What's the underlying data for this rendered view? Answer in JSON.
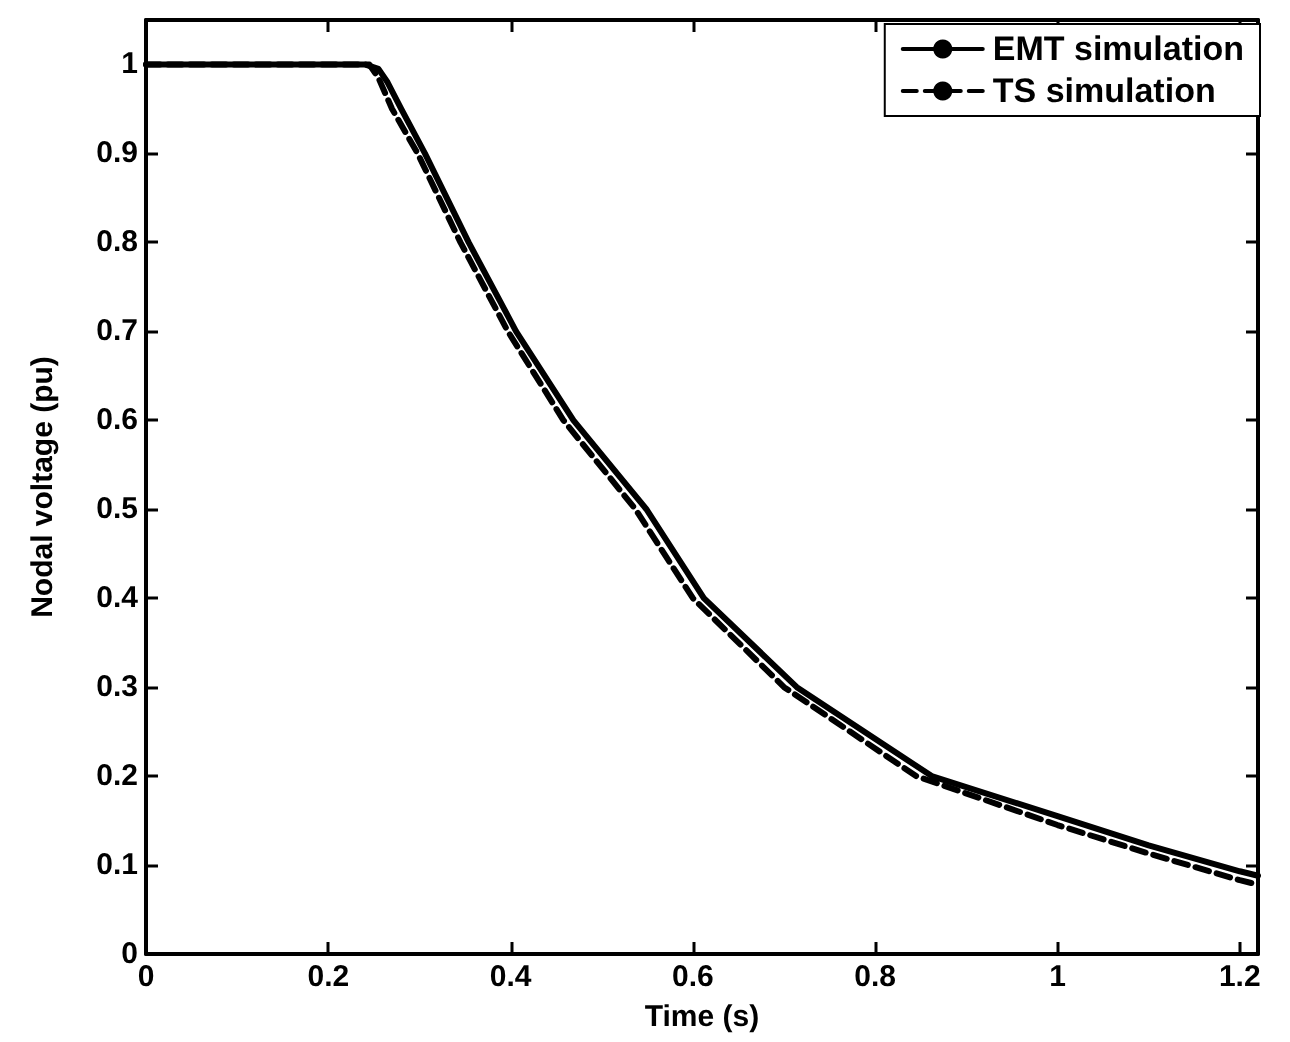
{
  "chart_data": {
    "type": "line",
    "xlabel": "Time (s)",
    "ylabel": "Nodal voltage (pu)",
    "xlim": [
      0,
      1.22
    ],
    "xticks": [
      0,
      0.2,
      0.4,
      0.6,
      0.8,
      1,
      1.2
    ],
    "ylim": [
      0,
      1.05
    ],
    "yticks": [
      0,
      0.1,
      0.2,
      0.3,
      0.4,
      0.5,
      0.6,
      0.7,
      0.8,
      0.9,
      1
    ],
    "grid": false,
    "legend": "top right",
    "marker": "none",
    "series": [
      {
        "name": "EMT simulation",
        "color": "#000000",
        "line_style": "solid",
        "x": [
          0,
          0.1,
          0.2,
          0.24,
          0.255,
          0.265,
          0.28,
          0.306,
          0.354,
          0.406,
          0.469,
          0.549,
          0.612,
          0.714,
          0.862,
          1.0,
          1.1,
          1.2,
          1.22
        ],
        "values": [
          1,
          1,
          1,
          1,
          0.995,
          0.98,
          0.95,
          0.9,
          0.8,
          0.7,
          0.6,
          0.5,
          0.4,
          0.3,
          0.2,
          0.155,
          0.122,
          0.093,
          0.088
        ]
      },
      {
        "name": "TS simulation",
        "color": "#000000",
        "line_style": "dashed",
        "x": [
          0,
          0.1,
          0.2,
          0.245,
          0.255,
          0.27,
          0.298,
          0.345,
          0.397,
          0.458,
          0.537,
          0.6,
          0.7,
          0.845,
          1.0,
          1.1,
          1.2,
          1.22
        ],
        "values": [
          1,
          1,
          1,
          1,
          0.985,
          0.95,
          0.9,
          0.8,
          0.7,
          0.6,
          0.5,
          0.4,
          0.3,
          0.2,
          0.145,
          0.113,
          0.083,
          0.078
        ]
      }
    ]
  }
}
